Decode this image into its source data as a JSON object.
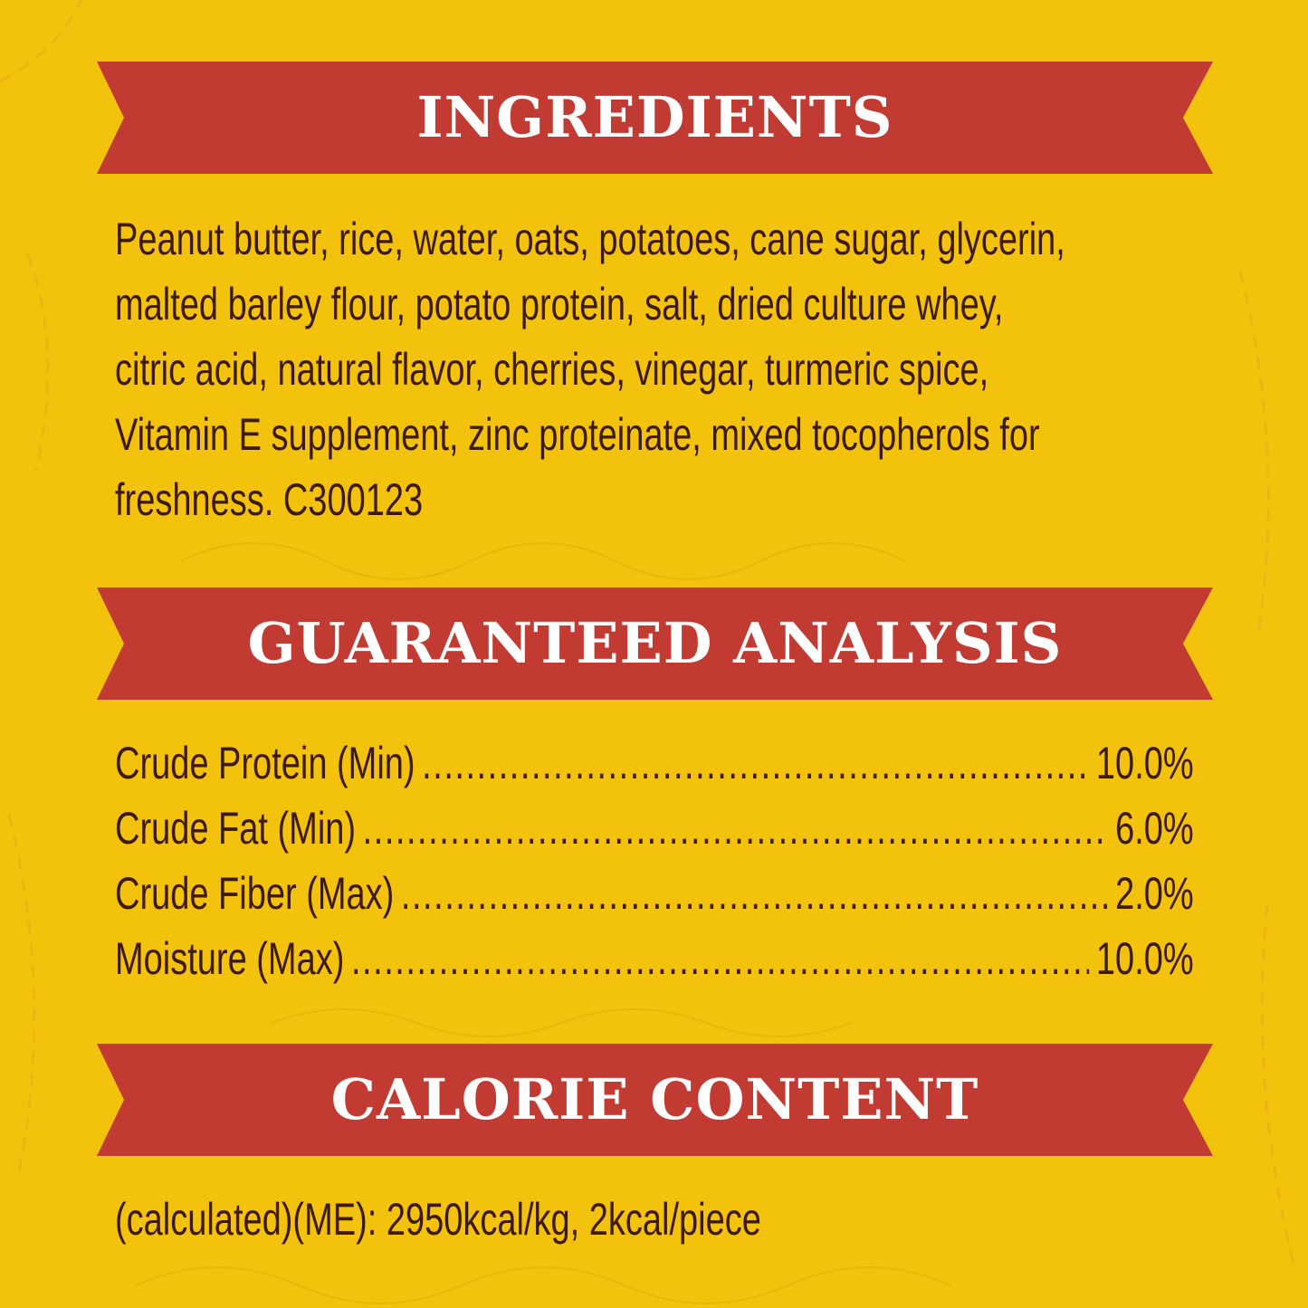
{
  "colors": {
    "background": "#f2c20c",
    "ribbon": "#c23b32",
    "text": "#3d1a0a",
    "heading_text": "#ffffff"
  },
  "ingredients": {
    "title": "INGREDIENTS",
    "lines": [
      "Peanut butter, rice, water, oats, potatoes, cane sugar, glycerin,",
      "malted barley flour, potato protein, salt, dried culture whey,",
      "citric acid, natural flavor, cherries, vinegar, turmeric spice,",
      "Vitamin E supplement, zinc proteinate, mixed tocopherols for",
      "freshness.  C300123"
    ]
  },
  "analysis": {
    "title": "GUARANTEED ANALYSIS",
    "rows": [
      {
        "label": "Crude Protein (Min)",
        "value": "10.0%"
      },
      {
        "label": "Crude Fat (Min)",
        "value": "6.0%"
      },
      {
        "label": "Crude Fiber (Max)",
        "value": "2.0%"
      },
      {
        "label": "Moisture (Max)",
        "value": "10.0%"
      }
    ]
  },
  "calories": {
    "title": "CALORIE CONTENT",
    "text": "(calculated)(ME): 2950kcal/kg, 2kcal/piece"
  }
}
